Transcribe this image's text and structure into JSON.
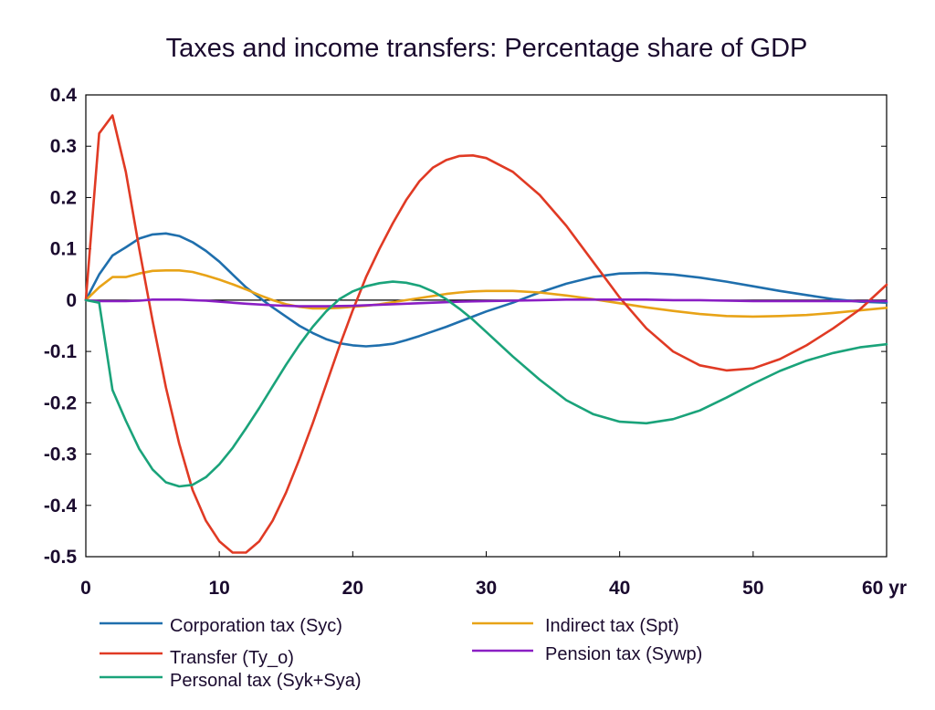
{
  "chart_data": {
    "type": "line",
    "title": "Taxes and income transfers: Percentage share of GDP",
    "xlabel": "",
    "ylabel": "",
    "xlim": [
      0,
      60
    ],
    "ylim": [
      -0.5,
      0.4
    ],
    "x_ticks": [
      {
        "value": 0,
        "label": "0"
      },
      {
        "value": 10,
        "label": "10"
      },
      {
        "value": 20,
        "label": "20"
      },
      {
        "value": 30,
        "label": "30"
      },
      {
        "value": 40,
        "label": "40"
      },
      {
        "value": 50,
        "label": "50"
      },
      {
        "value": 60,
        "label": "60 yr"
      }
    ],
    "y_ticks": [
      {
        "value": 0.4,
        "label": "0.4"
      },
      {
        "value": 0.3,
        "label": "0.3"
      },
      {
        "value": 0.2,
        "label": "0.2"
      },
      {
        "value": 0.1,
        "label": "0.1"
      },
      {
        "value": 0,
        "label": "0"
      },
      {
        "value": -0.1,
        "label": "-0.1"
      },
      {
        "value": -0.2,
        "label": "-0.2"
      },
      {
        "value": -0.3,
        "label": "-0.3"
      },
      {
        "value": -0.4,
        "label": "-0.4"
      },
      {
        "value": -0.5,
        "label": "-0.5"
      }
    ],
    "grid": false,
    "zero_line": true,
    "legend_position": "bottom",
    "series": [
      {
        "name": "Corporation tax (Syc)",
        "color": "#1f6fad",
        "points": [
          [
            0,
            0
          ],
          [
            1,
            0.05
          ],
          [
            2,
            0.087
          ],
          [
            3,
            0.103
          ],
          [
            4,
            0.12
          ],
          [
            5,
            0.128
          ],
          [
            6,
            0.13
          ],
          [
            7,
            0.125
          ],
          [
            8,
            0.113
          ],
          [
            9,
            0.096
          ],
          [
            10,
            0.075
          ],
          [
            11,
            0.05
          ],
          [
            12,
            0.025
          ],
          [
            13,
            0.005
          ],
          [
            14,
            -0.014
          ],
          [
            15,
            -0.032
          ],
          [
            16,
            -0.05
          ],
          [
            17,
            -0.064
          ],
          [
            18,
            -0.076
          ],
          [
            19,
            -0.084
          ],
          [
            20,
            -0.088
          ],
          [
            21,
            -0.09
          ],
          [
            22,
            -0.088
          ],
          [
            23,
            -0.085
          ],
          [
            24,
            -0.078
          ],
          [
            25,
            -0.07
          ],
          [
            26,
            -0.061
          ],
          [
            27,
            -0.052
          ],
          [
            28,
            -0.042
          ],
          [
            29,
            -0.032
          ],
          [
            30,
            -0.022
          ],
          [
            32,
            -0.005
          ],
          [
            34,
            0.015
          ],
          [
            36,
            0.032
          ],
          [
            38,
            0.045
          ],
          [
            40,
            0.052
          ],
          [
            42,
            0.053
          ],
          [
            44,
            0.05
          ],
          [
            46,
            0.044
          ],
          [
            48,
            0.036
          ],
          [
            50,
            0.027
          ],
          [
            52,
            0.018
          ],
          [
            54,
            0.01
          ],
          [
            56,
            0.002
          ],
          [
            58,
            -0.003
          ],
          [
            60,
            -0.005
          ]
        ]
      },
      {
        "name": "Indirect tax (Spt)",
        "color": "#e8a317",
        "points": [
          [
            0,
            0
          ],
          [
            1,
            0.025
          ],
          [
            2,
            0.045
          ],
          [
            3,
            0.045
          ],
          [
            4,
            0.052
          ],
          [
            5,
            0.057
          ],
          [
            6,
            0.058
          ],
          [
            7,
            0.058
          ],
          [
            8,
            0.055
          ],
          [
            9,
            0.048
          ],
          [
            10,
            0.04
          ],
          [
            11,
            0.031
          ],
          [
            12,
            0.021
          ],
          [
            13,
            0.01
          ],
          [
            14,
            0
          ],
          [
            15,
            -0.008
          ],
          [
            16,
            -0.013
          ],
          [
            17,
            -0.016
          ],
          [
            18,
            -0.016
          ],
          [
            19,
            -0.015
          ],
          [
            20,
            -0.013
          ],
          [
            21,
            -0.011
          ],
          [
            22,
            -0.008
          ],
          [
            23,
            -0.004
          ],
          [
            24,
            0
          ],
          [
            25,
            0.004
          ],
          [
            26,
            0.008
          ],
          [
            27,
            0.012
          ],
          [
            28,
            0.015
          ],
          [
            29,
            0.017
          ],
          [
            30,
            0.018
          ],
          [
            32,
            0.018
          ],
          [
            34,
            0.015
          ],
          [
            36,
            0.009
          ],
          [
            38,
            0.002
          ],
          [
            40,
            -0.006
          ],
          [
            42,
            -0.014
          ],
          [
            44,
            -0.021
          ],
          [
            46,
            -0.027
          ],
          [
            48,
            -0.031
          ],
          [
            50,
            -0.032
          ],
          [
            52,
            -0.031
          ],
          [
            54,
            -0.029
          ],
          [
            56,
            -0.025
          ],
          [
            58,
            -0.02
          ],
          [
            60,
            -0.015
          ]
        ]
      },
      {
        "name": "Transfer (Ty_o)",
        "color": "#e03a24",
        "points": [
          [
            0,
            0
          ],
          [
            1,
            0.325
          ],
          [
            2,
            0.36
          ],
          [
            3,
            0.25
          ],
          [
            4,
            0.1
          ],
          [
            5,
            -0.04
          ],
          [
            6,
            -0.17
          ],
          [
            7,
            -0.28
          ],
          [
            8,
            -0.37
          ],
          [
            9,
            -0.43
          ],
          [
            10,
            -0.47
          ],
          [
            11,
            -0.492
          ],
          [
            12,
            -0.492
          ],
          [
            13,
            -0.47
          ],
          [
            14,
            -0.43
          ],
          [
            15,
            -0.375
          ],
          [
            16,
            -0.31
          ],
          [
            17,
            -0.24
          ],
          [
            18,
            -0.165
          ],
          [
            19,
            -0.09
          ],
          [
            20,
            -0.02
          ],
          [
            21,
            0.045
          ],
          [
            22,
            0.1
          ],
          [
            23,
            0.15
          ],
          [
            24,
            0.195
          ],
          [
            25,
            0.232
          ],
          [
            26,
            0.258
          ],
          [
            27,
            0.273
          ],
          [
            28,
            0.281
          ],
          [
            29,
            0.282
          ],
          [
            30,
            0.277
          ],
          [
            32,
            0.25
          ],
          [
            34,
            0.205
          ],
          [
            36,
            0.145
          ],
          [
            38,
            0.075
          ],
          [
            40,
            0.005
          ],
          [
            42,
            -0.055
          ],
          [
            44,
            -0.1
          ],
          [
            46,
            -0.127
          ],
          [
            48,
            -0.137
          ],
          [
            50,
            -0.133
          ],
          [
            52,
            -0.115
          ],
          [
            54,
            -0.088
          ],
          [
            56,
            -0.055
          ],
          [
            58,
            -0.018
          ],
          [
            60,
            0.03
          ]
        ]
      },
      {
        "name": "Pension tax (Sywp)",
        "color": "#8a1fc4",
        "points": [
          [
            0,
            0
          ],
          [
            1,
            -0.002
          ],
          [
            2,
            -0.002
          ],
          [
            3,
            -0.002
          ],
          [
            4,
            -0.001
          ],
          [
            5,
            0.001
          ],
          [
            6,
            0.001
          ],
          [
            7,
            0.001
          ],
          [
            8,
            0
          ],
          [
            9,
            -0.001
          ],
          [
            10,
            -0.003
          ],
          [
            12,
            -0.007
          ],
          [
            14,
            -0.01
          ],
          [
            16,
            -0.012
          ],
          [
            18,
            -0.012
          ],
          [
            20,
            -0.011
          ],
          [
            22,
            -0.009
          ],
          [
            24,
            -0.007
          ],
          [
            26,
            -0.005
          ],
          [
            28,
            -0.003
          ],
          [
            30,
            -0.002
          ],
          [
            32,
            -0.001
          ],
          [
            34,
            0
          ],
          [
            36,
            0.001
          ],
          [
            38,
            0.001
          ],
          [
            40,
            0.001
          ],
          [
            42,
            0.001
          ],
          [
            44,
            0
          ],
          [
            46,
            0
          ],
          [
            48,
            -0.001
          ],
          [
            50,
            -0.002
          ],
          [
            52,
            -0.002
          ],
          [
            54,
            -0.002
          ],
          [
            56,
            -0.002
          ],
          [
            58,
            -0.002
          ],
          [
            60,
            -0.002
          ]
        ]
      },
      {
        "name": "Personal tax (Syk+Sya)",
        "color": "#1aa37a",
        "points": [
          [
            0,
            0
          ],
          [
            1,
            -0.005
          ],
          [
            2,
            -0.175
          ],
          [
            3,
            -0.235
          ],
          [
            4,
            -0.29
          ],
          [
            5,
            -0.33
          ],
          [
            6,
            -0.355
          ],
          [
            7,
            -0.363
          ],
          [
            8,
            -0.36
          ],
          [
            9,
            -0.345
          ],
          [
            10,
            -0.32
          ],
          [
            11,
            -0.288
          ],
          [
            12,
            -0.25
          ],
          [
            13,
            -0.21
          ],
          [
            14,
            -0.168
          ],
          [
            15,
            -0.126
          ],
          [
            16,
            -0.087
          ],
          [
            17,
            -0.052
          ],
          [
            18,
            -0.022
          ],
          [
            19,
            0.002
          ],
          [
            20,
            0.017
          ],
          [
            21,
            0.027
          ],
          [
            22,
            0.033
          ],
          [
            23,
            0.036
          ],
          [
            24,
            0.034
          ],
          [
            25,
            0.028
          ],
          [
            26,
            0.017
          ],
          [
            27,
            0.002
          ],
          [
            28,
            -0.017
          ],
          [
            29,
            -0.038
          ],
          [
            30,
            -0.062
          ],
          [
            32,
            -0.11
          ],
          [
            34,
            -0.155
          ],
          [
            36,
            -0.195
          ],
          [
            38,
            -0.222
          ],
          [
            40,
            -0.237
          ],
          [
            42,
            -0.24
          ],
          [
            44,
            -0.232
          ],
          [
            46,
            -0.215
          ],
          [
            48,
            -0.19
          ],
          [
            50,
            -0.163
          ],
          [
            52,
            -0.138
          ],
          [
            54,
            -0.118
          ],
          [
            56,
            -0.103
          ],
          [
            58,
            -0.092
          ],
          [
            60,
            -0.086
          ]
        ]
      }
    ]
  }
}
